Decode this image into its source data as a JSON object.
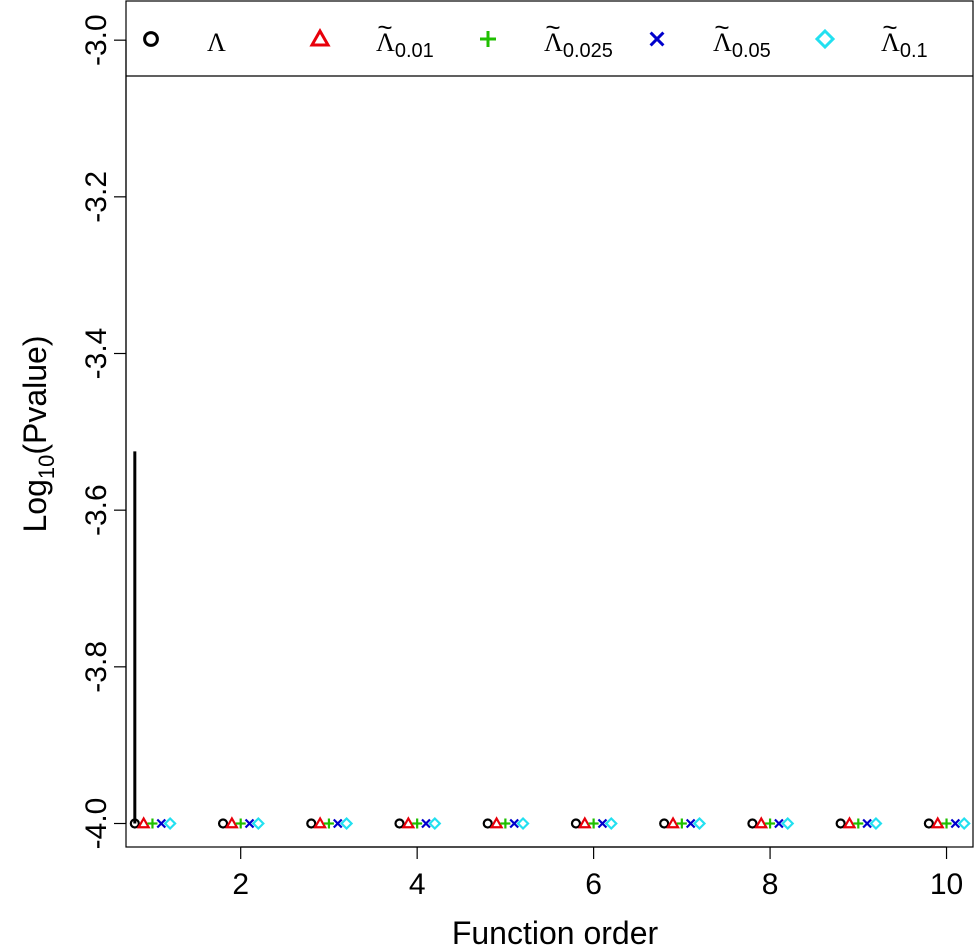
{
  "chart_data": {
    "type": "scatter",
    "xlabel": "Function order",
    "ylabel": {
      "prefix": "Log",
      "subscript": "10",
      "suffix": "(Pvalue)"
    },
    "xlim": [
      0.7,
      10.3
    ],
    "ylim": [
      -4.03,
      -2.95
    ],
    "xticks": [
      2,
      4,
      6,
      8,
      10
    ],
    "yticks": [
      -4.0,
      -3.8,
      -3.6,
      -3.4,
      -3.2,
      -3.0
    ],
    "ytick_labels": [
      "-4.0",
      "-3.8",
      "-3.6",
      "-3.4",
      "-3.2",
      "-3.0"
    ],
    "grid": false,
    "legend_position": "top",
    "x": [
      1,
      2,
      3,
      4,
      5,
      6,
      7,
      8,
      9,
      10
    ],
    "series": [
      {
        "name": "Λ",
        "subscript": "",
        "tilde": false,
        "marker": "circle",
        "color": "#000000",
        "offset": -0.2,
        "values": [
          -4,
          -4,
          -4,
          -4,
          -4,
          -4,
          -4,
          -4,
          -4,
          -4
        ]
      },
      {
        "name": "Λ",
        "subscript": "0.01",
        "tilde": true,
        "marker": "triangle",
        "color": "#e8000b",
        "offset": -0.1,
        "values": [
          -4,
          -4,
          -4,
          -4,
          -4,
          -4,
          -4,
          -4,
          -4,
          -4
        ]
      },
      {
        "name": "Λ",
        "subscript": "0.025",
        "tilde": true,
        "marker": "plus",
        "color": "#1fbf00",
        "offset": 0.0,
        "values": [
          -4,
          -4,
          -4,
          -4,
          -4,
          -4,
          -4,
          -4,
          -4,
          -4
        ]
      },
      {
        "name": "Λ",
        "subscript": "0.05",
        "tilde": true,
        "marker": "cross",
        "color": "#0000cc",
        "offset": 0.1,
        "values": [
          -4,
          -4,
          -4,
          -4,
          -4,
          -4,
          -4,
          -4,
          -4,
          -4
        ]
      },
      {
        "name": "Λ",
        "subscript": "0.1",
        "tilde": true,
        "marker": "diamond",
        "color": "#22e0f0",
        "offset": 0.2,
        "values": [
          -4,
          -4,
          -4,
          -4,
          -4,
          -4,
          -4,
          -4,
          -4,
          -4
        ]
      }
    ],
    "vertical_line": {
      "x": 0.8,
      "y_from": -4.0,
      "y_to": -3.525,
      "color": "#000000"
    }
  }
}
